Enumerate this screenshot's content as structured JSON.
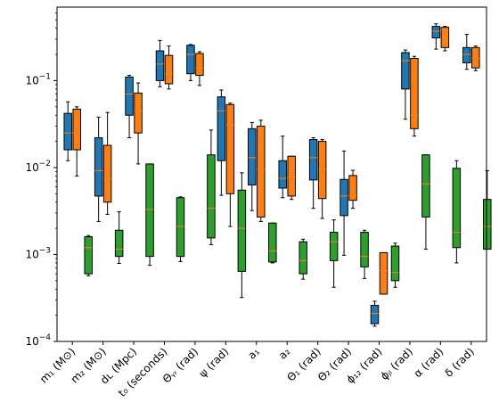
{
  "chart_data": {
    "type": "box",
    "y_scale": "log",
    "ylim": [
      0.0001,
      0.7
    ],
    "y_ticks": [
      {
        "value": 0.0001,
        "label": "10⁻⁴"
      },
      {
        "value": 0.001,
        "label": "10⁻³"
      },
      {
        "value": 0.01,
        "label": "10⁻²"
      },
      {
        "value": 0.1,
        "label": "10⁻¹"
      }
    ],
    "categories": [
      "m₁ (M⊙)",
      "m₂ (M⊙)",
      "dʟ (Mpc)",
      "t₀ (seconds)",
      "Θᵧᵣ (rad)",
      "ψ (rad)",
      "a₁",
      "a₂",
      "Θ₁ (rad)",
      "Θ₂ (rad)",
      "ϕ₁₂ (rad)",
      "ϕⱼₗ (rad)",
      "α (rad)",
      "δ (rad)"
    ],
    "series": [
      {
        "color": "#1f77b4",
        "boxes": [
          {
            "whislo": 0.012,
            "q1": 0.016,
            "med": 0.025,
            "q3": 0.042,
            "whishi": 0.057
          },
          {
            "whislo": 0.0024,
            "q1": 0.0047,
            "med": 0.0092,
            "q3": 0.022,
            "whishi": 0.038
          },
          {
            "whislo": 0.022,
            "q1": 0.04,
            "med": 0.07,
            "q3": 0.11,
            "whishi": 0.115
          },
          {
            "whislo": 0.085,
            "q1": 0.1,
            "med": 0.155,
            "q3": 0.22,
            "whishi": 0.29
          },
          {
            "whislo": 0.1,
            "q1": 0.12,
            "med": 0.2,
            "q3": 0.255,
            "whishi": 0.26
          },
          {
            "whislo": 0.0048,
            "q1": 0.012,
            "med": 0.045,
            "q3": 0.065,
            "whishi": 0.078
          },
          {
            "whislo": 0.0032,
            "q1": 0.0063,
            "med": 0.013,
            "q3": 0.028,
            "whishi": 0.033
          },
          {
            "whislo": 0.0045,
            "q1": 0.0058,
            "med": 0.0075,
            "q3": 0.012,
            "whishi": 0.023
          },
          {
            "whislo": 0.0034,
            "q1": 0.0072,
            "med": 0.013,
            "q3": 0.021,
            "whishi": 0.022
          },
          {
            "whislo": 0.00098,
            "q1": 0.0028,
            "med": 0.0047,
            "q3": 0.0073,
            "whishi": 0.0155
          },
          {
            "whislo": 0.00015,
            "q1": 0.00016,
            "med": 0.00021,
            "q3": 0.00026,
            "whishi": 0.00029
          },
          {
            "whislo": 0.036,
            "q1": 0.08,
            "med": 0.17,
            "q3": 0.21,
            "whishi": 0.225
          },
          {
            "whislo": 0.23,
            "q1": 0.31,
            "med": 0.37,
            "q3": 0.42,
            "whishi": 0.45
          },
          {
            "whislo": 0.135,
            "q1": 0.16,
            "med": 0.2,
            "q3": 0.24,
            "whishi": 0.34
          }
        ]
      },
      {
        "color": "#ff7f0e",
        "boxes": [
          {
            "whislo": 0.008,
            "q1": 0.016,
            "med": 0.025,
            "q3": 0.047,
            "whishi": 0.05
          },
          {
            "whislo": 0.0029,
            "q1": 0.004,
            "med": 0.0075,
            "q3": 0.018,
            "whishi": 0.043
          },
          {
            "whislo": 0.011,
            "q1": 0.025,
            "med": 0.045,
            "q3": 0.072,
            "whishi": 0.094
          },
          {
            "whislo": 0.08,
            "q1": 0.092,
            "med": 0.12,
            "q3": 0.195,
            "whishi": 0.25
          },
          {
            "whislo": 0.088,
            "q1": 0.115,
            "med": 0.14,
            "q3": 0.205,
            "whishi": 0.215
          },
          {
            "whislo": 0.0021,
            "q1": 0.005,
            "med": 0.031,
            "q3": 0.053,
            "whishi": 0.055
          },
          {
            "whislo": 0.0024,
            "q1": 0.0027,
            "med": 0.0095,
            "q3": 0.03,
            "whishi": 0.035
          },
          {
            "whislo": 0.0043,
            "q1": 0.0047,
            "med": 0.0078,
            "q3": 0.0135,
            "whishi": 0.0135
          },
          {
            "whislo": 0.0026,
            "q1": 0.0044,
            "med": 0.0095,
            "q3": 0.02,
            "whishi": 0.021
          },
          {
            "whislo": 0.0034,
            "q1": 0.0042,
            "med": 0.0048,
            "q3": 0.0081,
            "whishi": 0.0093
          },
          {
            "whislo": 0.00035,
            "q1": 0.00035,
            "med": 0.00065,
            "q3": 0.00105,
            "whishi": 0.00105
          },
          {
            "whislo": 0.023,
            "q1": 0.028,
            "med": 0.04,
            "q3": 0.18,
            "whishi": 0.19
          },
          {
            "whislo": 0.22,
            "q1": 0.24,
            "med": 0.38,
            "q3": 0.41,
            "whishi": 0.42
          },
          {
            "whislo": 0.13,
            "q1": 0.14,
            "med": 0.18,
            "q3": 0.24,
            "whishi": 0.25
          }
        ]
      },
      {
        "color": "#2ca02c",
        "boxes": [
          {
            "whislo": 0.00057,
            "q1": 0.0006,
            "med": 0.0012,
            "q3": 0.0016,
            "whishi": 0.00165
          },
          {
            "whislo": 0.00079,
            "q1": 0.00095,
            "med": 0.00115,
            "q3": 0.0019,
            "whishi": 0.0031
          },
          {
            "whislo": 0.00075,
            "q1": 0.00095,
            "med": 0.0033,
            "q3": 0.011,
            "whishi": 0.011
          },
          {
            "whislo": 0.00083,
            "q1": 0.00095,
            "med": 0.0021,
            "q3": 0.0045,
            "whishi": 0.0046
          },
          {
            "whislo": 0.0013,
            "q1": 0.00155,
            "med": 0.0034,
            "q3": 0.014,
            "whishi": 0.027
          },
          {
            "whislo": 0.00032,
            "q1": 0.00064,
            "med": 0.002,
            "q3": 0.0055,
            "whishi": 0.0087
          },
          {
            "whislo": 0.0008,
            "q1": 0.00082,
            "med": 0.0011,
            "q3": 0.0023,
            "whishi": 0.0023
          },
          {
            "whislo": 0.00052,
            "q1": 0.0006,
            "med": 0.00085,
            "q3": 0.0014,
            "whishi": 0.0015
          },
          {
            "whislo": 0.00042,
            "q1": 0.00085,
            "med": 0.0014,
            "q3": 0.0018,
            "whishi": 0.0025
          },
          {
            "whislo": 0.00053,
            "q1": 0.00072,
            "med": 0.00095,
            "q3": 0.0018,
            "whishi": 0.0019
          },
          {
            "whislo": 0.00042,
            "q1": 0.0005,
            "med": 0.00062,
            "q3": 0.00125,
            "whishi": 0.00135
          },
          {
            "whislo": 0.00115,
            "q1": 0.0027,
            "med": 0.0065,
            "q3": 0.014,
            "whishi": 0.014
          },
          {
            "whislo": 0.0008,
            "q1": 0.0012,
            "med": 0.0018,
            "q3": 0.0098,
            "whishi": 0.012
          },
          {
            "whislo": 0.00115,
            "q1": 0.00115,
            "med": 0.0021,
            "q3": 0.0043,
            "whishi": 0.0092
          }
        ]
      }
    ],
    "median_color": "#ff7f0e",
    "grid": false,
    "legend": "none"
  }
}
